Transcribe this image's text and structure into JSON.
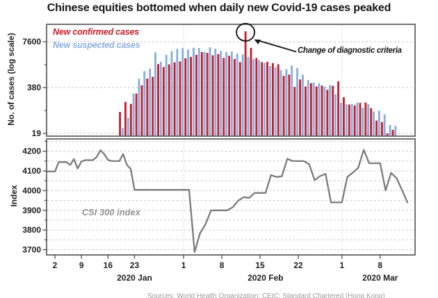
{
  "title": "Chinese equities bottomed when daily new Covid-19 cases peaked",
  "palette": {
    "confirmed_red": "#c5202e",
    "suspected_blue": "#8aaedd",
    "index_gray": "#7b7b7b",
    "frame_gray": "#595959",
    "grid_gray": "#c6c6c6",
    "text_black": "#1e1e1e"
  },
  "top_panel": {
    "y_axis_label": "No. of cases (log scale)",
    "y_ticks": [
      {
        "value": 7600,
        "label": "7600"
      },
      {
        "value": 380,
        "label": "380"
      },
      {
        "value": 19,
        "label": "19"
      }
    ],
    "y_minor_tick_values": [
      1700,
      85
    ],
    "legend": {
      "confirmed": "New confirmed cases",
      "suspected": "New suspected cases"
    },
    "annotation": {
      "label": "Change of diagnostic criteria",
      "target_date": "2020-02-12"
    }
  },
  "bottom_panel": {
    "y_axis_label": "Index",
    "y_tick_values": [
      4200,
      4100,
      4000,
      3900,
      3800,
      3700
    ],
    "y_minor_tick_values": [
      4250,
      4150,
      4050,
      3950,
      3850,
      3750
    ],
    "series_label": "CSI 300 index"
  },
  "x_axis": {
    "day_ticks": [
      {
        "date": "2020-01-02",
        "label": "2"
      },
      {
        "date": "2020-01-09",
        "label": "9"
      },
      {
        "date": "2020-01-16",
        "label": "16"
      },
      {
        "date": "2020-01-23",
        "label": "23"
      },
      {
        "date": "2020-02-01",
        "label": "1"
      },
      {
        "date": "2020-02-08",
        "label": "8"
      },
      {
        "date": "2020-02-15",
        "label": "15"
      },
      {
        "date": "2020-02-22",
        "label": "22"
      },
      {
        "date": "2020-03-01",
        "label": "1"
      },
      {
        "date": "2020-03-08",
        "label": "8"
      }
    ],
    "month_labels": [
      {
        "label": "2020 Jan",
        "anchor_date": "2020-01-23"
      },
      {
        "label": "2020 Feb",
        "anchor_date": "2020-02-16"
      },
      {
        "label": "2020 Mar",
        "anchor_date": "2020-03-08"
      }
    ],
    "gridline_dates": [
      "2020-02-01",
      "2020-03-01"
    ]
  },
  "footer": {
    "source_note": "Sources: World Health Organization; CEIC; Standard Chartered (Hong Kong)"
  },
  "chart_data": [
    {
      "type": "bar",
      "panel": "top",
      "y_scale": "log",
      "ylim": [
        15,
        20000
      ],
      "start_date": "2020-01-20",
      "categories_note": "one red+blue pair per calendar day, 2020-01-20 through 2020-03-10",
      "series": [
        {
          "name": "New confirmed cases",
          "color": "#c5202e",
          "values": [
            77,
            149,
            131,
            259,
            444,
            688,
            769,
            1771,
            1459,
            1737,
            1982,
            2102,
            2590,
            2829,
            3235,
            3887,
            3694,
            3143,
            3399,
            2656,
            3062,
            2478,
            2015,
            15152,
            5090,
            2641,
            2009,
            2048,
            1886,
            1749,
            820,
            889,
            397,
            648,
            409,
            508,
            406,
            433,
            327,
            427,
            573,
            202,
            125,
            119,
            139,
            143,
            99,
            44,
            40,
            19,
            24
          ]
        },
        {
          "name": "New suspected cases",
          "color": "#8aaedd",
          "values": [
            27,
            53,
            257,
            680,
            1118,
            1309,
            3806,
            2077,
            3248,
            4148,
            4812,
            5019,
            4562,
            5173,
            5072,
            3971,
            5328,
            4833,
            4214,
            3916,
            4008,
            3536,
            3342,
            2807,
            2450,
            2277,
            1918,
            1563,
            1432,
            1185,
            1277,
            1614,
            1361,
            882,
            620,
            530,
            508,
            403,
            452,
            248,
            141,
            129,
            129,
            143,
            102,
            128,
            79,
            84,
            66,
            33,
            31
          ]
        }
      ]
    },
    {
      "type": "line",
      "panel": "bottom",
      "name": "CSI 300 index",
      "ylim": [
        3650,
        4250
      ],
      "fill_forward_through": "2020-03-13",
      "points": [
        [
          "2020-01-02",
          4097
        ],
        [
          "2020-01-03",
          4145
        ],
        [
          "2020-01-06",
          4130
        ],
        [
          "2020-01-07",
          4160
        ],
        [
          "2020-01-08",
          4112
        ],
        [
          "2020-01-09",
          4148
        ],
        [
          "2020-01-10",
          4155
        ],
        [
          "2020-01-13",
          4170
        ],
        [
          "2020-01-14",
          4205
        ],
        [
          "2020-01-15",
          4186
        ],
        [
          "2020-01-16",
          4156
        ],
        [
          "2020-01-17",
          4150
        ],
        [
          "2020-01-20",
          4186
        ],
        [
          "2020-01-21",
          4130
        ],
        [
          "2020-01-22",
          4110
        ],
        [
          "2020-01-23",
          4004
        ],
        [
          "2020-02-03",
          3688
        ],
        [
          "2020-02-04",
          3783
        ],
        [
          "2020-02-05",
          3829
        ],
        [
          "2020-02-06",
          3899
        ],
        [
          "2020-02-07",
          3900
        ],
        [
          "2020-02-10",
          3916
        ],
        [
          "2020-02-11",
          3949
        ],
        [
          "2020-02-12",
          3967
        ],
        [
          "2020-02-13",
          3963
        ],
        [
          "2020-02-14",
          3988
        ],
        [
          "2020-02-17",
          4079
        ],
        [
          "2020-02-18",
          4069
        ],
        [
          "2020-02-19",
          4073
        ],
        [
          "2020-02-20",
          4162
        ],
        [
          "2020-02-21",
          4150
        ],
        [
          "2020-02-24",
          4134
        ],
        [
          "2020-02-25",
          4053
        ],
        [
          "2020-02-26",
          4074
        ],
        [
          "2020-02-27",
          4085
        ],
        [
          "2020-02-28",
          3940
        ],
        [
          "2020-03-02",
          4070
        ],
        [
          "2020-03-03",
          4091
        ],
        [
          "2020-03-04",
          4116
        ],
        [
          "2020-03-05",
          4207
        ],
        [
          "2020-03-06",
          4139
        ],
        [
          "2020-03-09",
          4001
        ],
        [
          "2020-03-10",
          4090
        ],
        [
          "2020-03-11",
          4064
        ],
        [
          "2020-03-12",
          4004
        ],
        [
          "2020-03-13",
          3940
        ]
      ]
    }
  ]
}
